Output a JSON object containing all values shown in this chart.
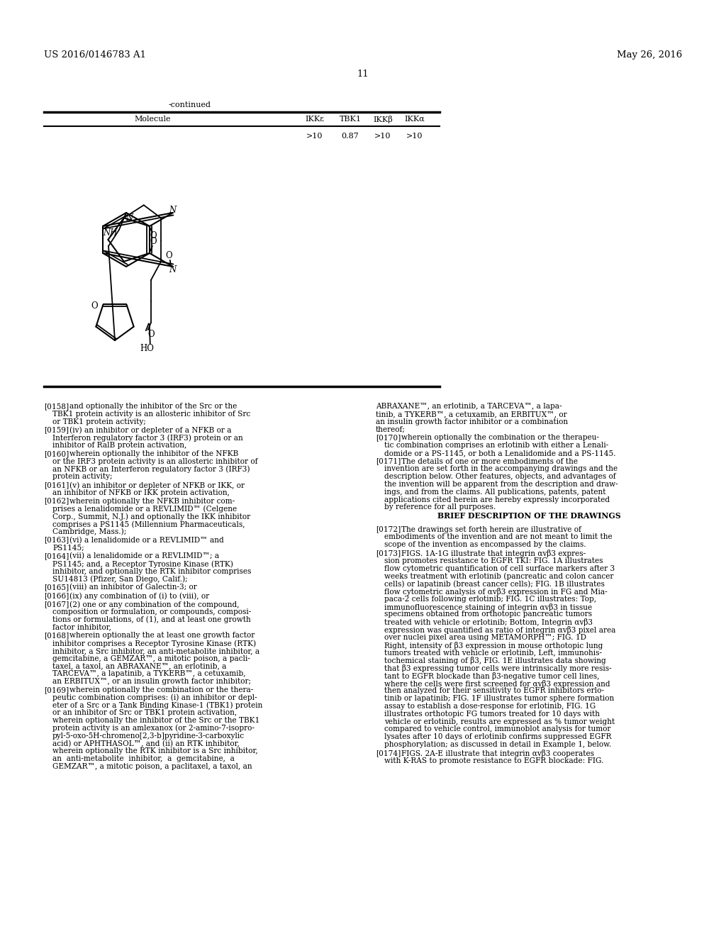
{
  "page_num": "11",
  "patent_left": "US 2016/0146783 A1",
  "patent_right": "May 26, 2016",
  "continued_label": "-continued",
  "table_headers": [
    "Molecule",
    "IKKε",
    "TBK1",
    "IKKβ",
    "IKKα"
  ],
  "table_values": [
    ">10",
    "0.87",
    ">10",
    ">10"
  ],
  "col_left_paragraphs": [
    {
      "tag": "[0158]",
      "indent": "    ",
      "text": "and optionally the inhibitor of the Src or the\n    TBK1 protein activity is an allosteric inhibitor of Src\n    or TBK1 protein activity;"
    },
    {
      "tag": "[0159]",
      "indent": "    ",
      "text": "(iv) an inhibitor or depleter of a NFKB or a\n    Interferon regulatory factor 3 (IRF3) protein or an\n    inhibitor of RalB protein activation,"
    },
    {
      "tag": "[0160]",
      "indent": "    ",
      "text": "wherein optionally the inhibitor of the NFKB\n    or the IRF3 protein activity is an allosteric inhibitor of\n    an NFKB or an Interferon regulatory factor 3 (IRF3)\n    protein activity;"
    },
    {
      "tag": "[0161]",
      "indent": "    ",
      "text": "(v) an inhibitor or depleter of NFKB or IKK, or\n    an inhibitor of NFKB or IKK protein activation,"
    },
    {
      "tag": "[0162]",
      "indent": "    ",
      "text": "wherein optionally the NFKB inhibitor com-\n    prises a lenalidomide or a REVLIMID™ (Celgene\n    Corp., Summit, N.J.) and optionally the IKK inhibitor\n    comprises a PS1145 (Millennium Pharmaceuticals,\n    Cambridge, Mass.);"
    },
    {
      "tag": "[0163]",
      "indent": "    ",
      "text": "(vi) a lenalidomide or a REVLIMID™ and\n    PS1145;"
    },
    {
      "tag": "[0164]",
      "indent": "    ",
      "text": "(vii) a lenalidomide or a REVLIMID™; a\n    PS1145; and, a Receptor Tyrosine Kinase (RTK)\n    inhibitor, and optionally the RTK inhibitor comprises\n    SU14813 (Pfizer, San Diego, Calif.);"
    },
    {
      "tag": "[0165]",
      "indent": "    ",
      "text": "(viii) an inhibitor of Galectin-3; or"
    },
    {
      "tag": "[0166]",
      "indent": "    ",
      "text": "(ix) any combination of (i) to (viii), or"
    },
    {
      "tag": "[0167]",
      "indent": "    ",
      "text": "(2) one or any combination of the compound,\n    composition or formulation, or compounds, composi-\n    tions or formulations, of (1), and at least one growth\n    factor inhibitor,"
    },
    {
      "tag": "[0168]",
      "indent": "    ",
      "text": "wherein optionally the at least one growth factor\n    inhibitor comprises a Receptor Tyrosine Kinase (RTK)\n    inhibitor, a Src inhibitor, an anti-metabolite inhibitor, a\n    gemcitabine, a GEMZAR™, a mitotic poison, a pacli-\n    taxel, a taxol, an ABRAXANE™, an erlotinib, a\n    TARCEVA™, a lapatinib, a TYKERB™, a cetuxamib,\n    an ERBITUX™, or an insulin growth factor inhibitor;"
    },
    {
      "tag": "[0169]",
      "indent": "    ",
      "text": "wherein optionally the combination or the thera-\n    peutic combination comprises: (i) an inhibitor or depl-\n    eter of a Src or a Tank Binding Kinase-1 (TBK1) protein\n    or an inhibitor of Src or TBK1 protein activation,\n    wherein optionally the inhibitor of the Src or the TBK1\n    protein activity is an amlexanox (or 2-amino-7-isopro-\n    pyl-5-oxo-5H-chromeno[2,3-b]pyridine-3-carboxylic\n    acid) or APHTHASOL™, and (ii) an RTK inhibitor,\n    wherein optionally the RTK inhibitor is a Src inhibitor,\n    an  anti-metabolite  inhibitor,  a  gemcitabine,  a\n    GEMZAR™, a mitotic poison, a paclitaxel, a taxol, an"
    }
  ],
  "col_right_paragraphs": [
    {
      "tag": "",
      "text": "ABRAXANE™, an erlotinib, a TARCEVA™, a lapa-\ntinib, a TYKERB™, a cetuxamib, an ERBITUX™, or\nan insulin growth factor inhibitor or a combination\nthereof;"
    },
    {
      "tag": "[0170]",
      "text": "wherein optionally the combination or the therapeu-\ntic combination comprises an erlotinib with either a Lenali-\ndomide or a PS-1145, or both a Lenalidomide and a PS-1145."
    },
    {
      "tag": "[0171]",
      "text": "The details of one or more embodiments of the\ninvention are set forth in the accompanying drawings and the\ndescription below. Other features, objects, and advantages of\nthe invention will be apparent from the description and draw-\nings, and from the claims. All publications, patents, patent\napplications cited herein are hereby expressly incorporated\nby reference for all purposes."
    },
    {
      "tag": "BRIEF DESCRIPTION OF THE DRAWINGS",
      "text": ""
    },
    {
      "tag": "[0172]",
      "text": "The drawings set forth herein are illustrative of\nembodiments of the invention and are not meant to limit the\nscope of the invention as encompassed by the claims."
    },
    {
      "tag": "[0173]",
      "text": "FIGS. 1A-1G illustrate that integrin αvβ3 expres-\nsion promotes resistance to EGFR TKI: FIG. 1A illustrates\nflow cytometric quantification of cell surface markers after 3\nweeks treatment with erlotinib (pancreatic and colon cancer\ncells) or lapatinib (breast cancer cells); FIG. 1B illustrates\nflow cytometric analysis of αvβ3 expression in FG and Mia-\npaca-2 cells following erlotinib; FIG. 1C illustrates: Top,\nimmunofluorescence staining of integrin αvβ3 in tissue\nspecimens obtained from orthotopic pancreatic tumors\ntreated with vehicle or erlotinib; Bottom, Integrin αvβ3\nexpression was quantified as ratio of integrin αvβ3 pixel area\nover nuclei pixel area using METAMORPH™; FIG. 1D\nRight, intensity of β3 expression in mouse orthotopic lung\ntumors treated with vehicle or erlotinib, Left, immunohis-\ntochemical staining of β3, FIG. 1E illustrates data showing\nthat β3 expressing tumor cells were intrinsically more resis-\ntant to EGFR blockade than β3-negative tumor cell lines,\nwhere the cells were first screened for αvβ3 expression and\nthen analyzed for their sensitivity to EGFR inhibitors erlo-\ntinib or lapatinib; FIG. 1F illustrates tumor sphere formation\nassay to establish a dose-response for erlotinib, FIG. 1G\nillustrates orthotopic FG tumors treated for 10 days with\nvehicle or erlotinib, results are expressed as % tumor weight\ncompared to vehicle control, immunoblot analysis for tumor\nlysates after 10 days of erlotinib confirms suppressed EGFR\nphosphorylation; as discussed in detail in Example 1, below."
    },
    {
      "tag": "[0174]",
      "text": "FIGS. 2A-E illustrate that integrin αvβ3 cooperates\nwith K-RAS to promote resistance to EGFR blockade: FIG."
    }
  ],
  "bg_color": "#ffffff",
  "text_color": "#000000"
}
